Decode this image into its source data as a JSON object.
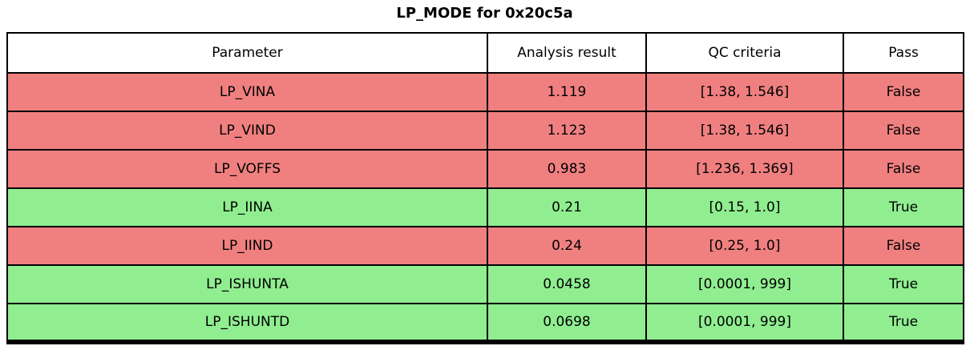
{
  "title": "LP_MODE for 0x20c5a",
  "colors": {
    "fail_row": "#F08080",
    "pass_row": "#90EE90",
    "header_bg": "#FFFFFF",
    "grid": "#000000",
    "text": "#000000"
  },
  "chart_data": {
    "type": "table",
    "title": "LP_MODE for 0x20c5a",
    "columns": [
      "Parameter",
      "Analysis result",
      "QC criteria",
      "Pass"
    ],
    "rows": [
      [
        "LP_VINA",
        "1.119",
        "[1.38, 1.546]",
        "False"
      ],
      [
        "LP_VIND",
        "1.123",
        "[1.38, 1.546]",
        "False"
      ],
      [
        "LP_VOFFS",
        "0.983",
        "[1.236, 1.369]",
        "False"
      ],
      [
        "LP_IINA",
        "0.21",
        "[0.15, 1.0]",
        "True"
      ],
      [
        "LP_IIND",
        "0.24",
        "[0.25, 1.0]",
        "False"
      ],
      [
        "LP_ISHUNTA",
        "0.0458",
        "[0.0001, 999]",
        "True"
      ],
      [
        "LP_ISHUNTD",
        "0.0698",
        "[0.0001, 999]",
        "True"
      ]
    ],
    "row_status": [
      "fail",
      "fail",
      "fail",
      "pass",
      "fail",
      "pass",
      "pass"
    ],
    "layout": {
      "header_background": "#FFFFFF",
      "fail_row_background": "#F08080",
      "pass_row_background": "#90EE90",
      "grid": true,
      "grid_color": "#000000"
    }
  }
}
